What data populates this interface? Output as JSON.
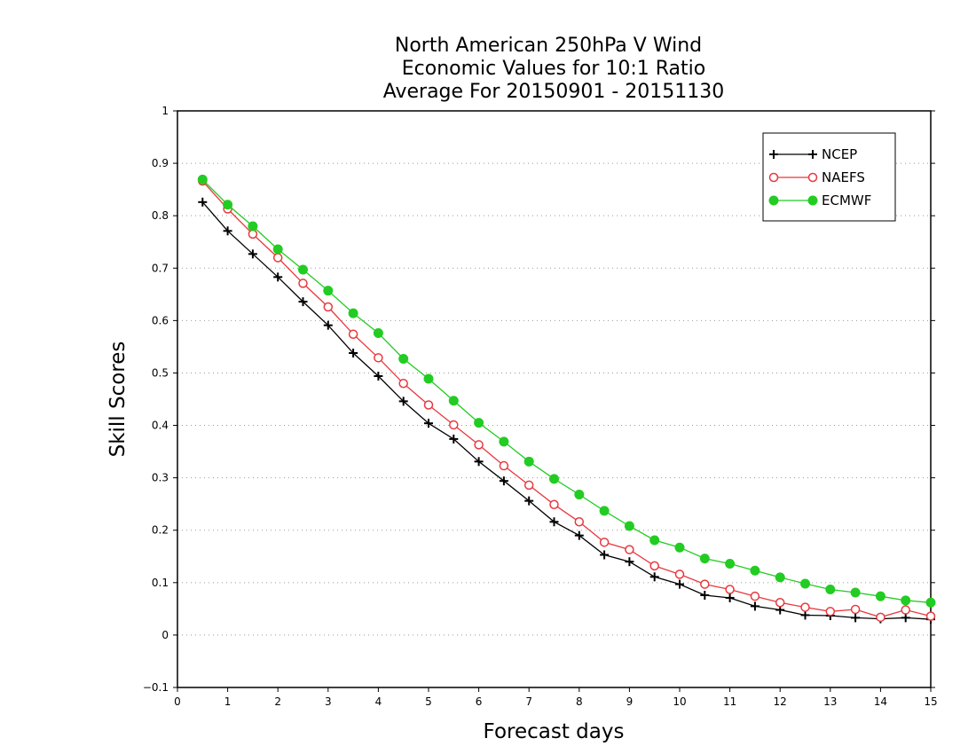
{
  "chart_data": {
    "type": "line",
    "title_lines": [
      "North American 250hPa V Wind",
      "Economic Values for 10:1 Ratio",
      "Average For 20150901 - 20151130"
    ],
    "xlabel": "Forecast days",
    "ylabel": "Skill Scores",
    "xlim": [
      0,
      15
    ],
    "ylim": [
      -0.1,
      1
    ],
    "x_ticks": [
      0,
      1,
      2,
      3,
      4,
      5,
      6,
      7,
      8,
      9,
      10,
      11,
      12,
      13,
      14,
      15
    ],
    "x_tick_labels": [
      "0",
      "1",
      "2",
      "3",
      "4",
      "5",
      "6",
      "7",
      "8",
      "9",
      "10",
      "11",
      "12",
      "13",
      "14",
      "15"
    ],
    "y_ticks": [
      -0.1,
      0,
      0.1,
      0.2,
      0.3,
      0.4,
      0.5,
      0.6,
      0.7,
      0.8,
      0.9,
      1
    ],
    "y_tick_labels": [
      "−0.1",
      "0",
      "0.1",
      "0.2",
      "0.3",
      "0.4",
      "0.5",
      "0.6",
      "0.7",
      "0.8",
      "0.9",
      "1"
    ],
    "grid": true,
    "legend_position": "top-right",
    "x": [
      0.5,
      1,
      1.5,
      2,
      2.5,
      3,
      3.5,
      4,
      4.5,
      5,
      5.5,
      6,
      6.5,
      7,
      7.5,
      8,
      8.5,
      9,
      9.5,
      10,
      10.5,
      11,
      11.5,
      12,
      12.5,
      13,
      13.5,
      14,
      14.5,
      15
    ],
    "series": [
      {
        "name": "NCEP",
        "color": "#000000",
        "marker": "plus",
        "values": [
          0.826,
          0.771,
          0.727,
          0.683,
          0.636,
          0.591,
          0.538,
          0.494,
          0.446,
          0.404,
          0.374,
          0.331,
          0.294,
          0.256,
          0.216,
          0.19,
          0.153,
          0.14,
          0.111,
          0.097,
          0.076,
          0.071,
          0.055,
          0.048,
          0.038,
          0.037,
          0.033,
          0.031,
          0.033,
          0.03
        ]
      },
      {
        "name": "NAEFS",
        "color": "#e8383d",
        "marker": "open-circle",
        "values": [
          0.866,
          0.813,
          0.765,
          0.72,
          0.671,
          0.626,
          0.574,
          0.529,
          0.48,
          0.439,
          0.401,
          0.363,
          0.323,
          0.286,
          0.249,
          0.216,
          0.177,
          0.163,
          0.132,
          0.116,
          0.097,
          0.087,
          0.074,
          0.062,
          0.053,
          0.045,
          0.049,
          0.034,
          0.048,
          0.036
        ]
      },
      {
        "name": "ECMWF",
        "color": "#22cc22",
        "marker": "filled-circle",
        "values": [
          0.869,
          0.821,
          0.78,
          0.736,
          0.697,
          0.657,
          0.614,
          0.576,
          0.527,
          0.489,
          0.447,
          0.405,
          0.369,
          0.331,
          0.298,
          0.268,
          0.237,
          0.208,
          0.181,
          0.167,
          0.146,
          0.136,
          0.123,
          0.11,
          0.098,
          0.087,
          0.081,
          0.074,
          0.066,
          0.062
        ]
      }
    ]
  }
}
